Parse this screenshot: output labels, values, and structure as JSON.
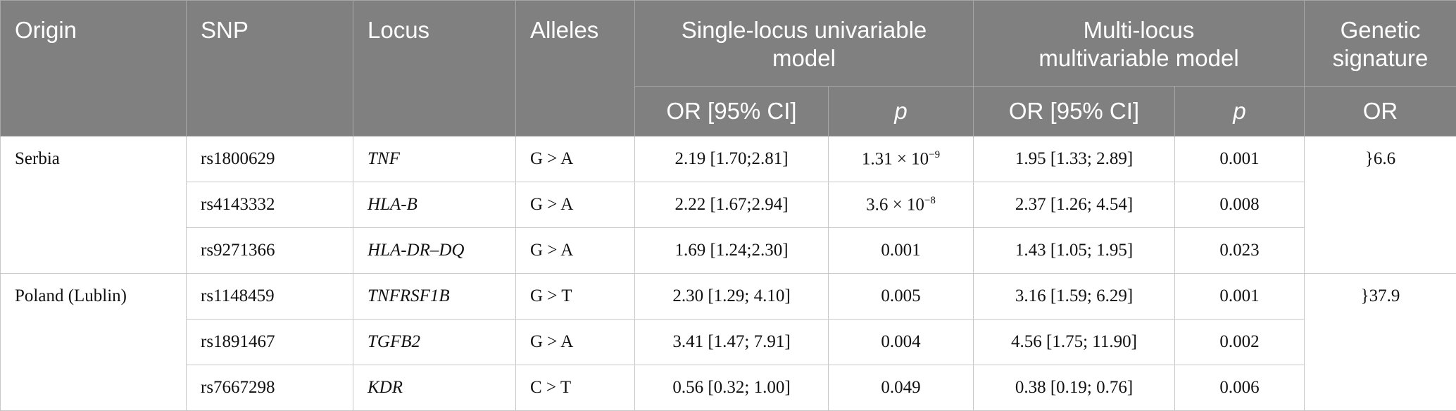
{
  "table": {
    "header": {
      "origin": "Origin",
      "snp": "SNP",
      "locus": "Locus",
      "alleles": "Alleles",
      "single": "Single-locus univariable\nmodel",
      "multi": "Multi-locus\nmultivariable model",
      "signature": "Genetic\nsignature",
      "or1": "OR [95% CI]",
      "p1": "p",
      "or2": "OR [95% CI]",
      "p2": "p",
      "or3": "OR"
    },
    "groups": [
      {
        "origin": "Serbia",
        "signature": "}6.6",
        "rows": [
          {
            "snp": "rs1800629",
            "locus": "TNF",
            "alleles": "G > A",
            "or1": "2.19 [1.70;2.81]",
            "p1": {
              "base": "1.31 × 10",
              "exp": "−9"
            },
            "or2": "1.95 [1.33; 2.89]",
            "p2": "0.001"
          },
          {
            "snp": "rs4143332",
            "locus": "HLA-B",
            "alleles": "G > A",
            "or1": "2.22 [1.67;2.94]",
            "p1": {
              "base": "3.6 × 10",
              "exp": "−8"
            },
            "or2": "2.37 [1.26; 4.54]",
            "p2": "0.008"
          },
          {
            "snp": "rs9271366",
            "locus": "HLA-DR–DQ",
            "alleles": "G > A",
            "or1": "1.69 [1.24;2.30]",
            "p1": "0.001",
            "or2": "1.43 [1.05; 1.95]",
            "p2": "0.023"
          }
        ]
      },
      {
        "origin": "Poland (Lublin)",
        "signature": "}37.9",
        "rows": [
          {
            "snp": "rs1148459",
            "locus": "TNFRSF1B",
            "alleles": "G > T",
            "or1": "2.30 [1.29; 4.10]",
            "p1": "0.005",
            "or2": "3.16 [1.59; 6.29]",
            "p2": "0.001"
          },
          {
            "snp": "rs1891467",
            "locus": "TGFB2",
            "alleles": "G > A",
            "or1": "3.41 [1.47; 7.91]",
            "p1": "0.004",
            "or2": "4.56 [1.75; 11.90]",
            "p2": "0.002"
          },
          {
            "snp": "rs7667298",
            "locus": "KDR",
            "alleles": "C > T",
            "or1": "0.56 [0.32; 1.00]",
            "p1": "0.049",
            "or2": "0.38 [0.19; 0.76]",
            "p2": "0.006"
          }
        ]
      }
    ]
  }
}
